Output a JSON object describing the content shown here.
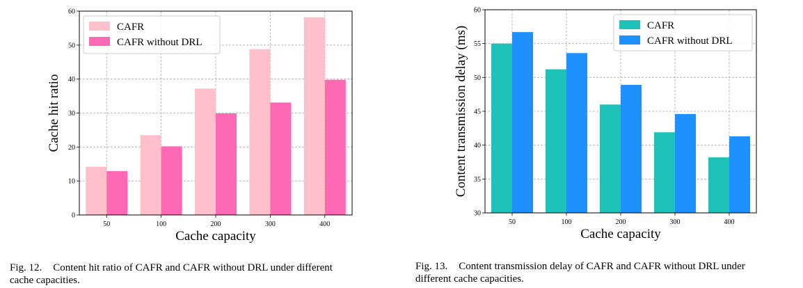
{
  "chart_data": [
    {
      "type": "bar",
      "title": "",
      "xlabel": "Cache capacity",
      "ylabel": "Cache hit ratio",
      "categories": [
        "50",
        "100",
        "200",
        "300",
        "400"
      ],
      "ylim": [
        0,
        60
      ],
      "yticks": [
        "0",
        "10",
        "20",
        "30",
        "40",
        "50",
        "60"
      ],
      "grid": true,
      "legend_position": "top-left",
      "series": [
        {
          "name": "CAFR",
          "values": [
            14.2,
            23.5,
            37.2,
            48.8,
            58.2
          ],
          "color": "#ffc0cb"
        },
        {
          "name": "CAFR without DRL",
          "values": [
            12.9,
            20.2,
            29.9,
            33.1,
            39.8
          ],
          "color": "#ff69b4"
        }
      ]
    },
    {
      "type": "bar",
      "title": "",
      "xlabel": "Cache capacity",
      "ylabel": "Content transmission delay (ms)",
      "categories": [
        "50",
        "100",
        "200",
        "300",
        "400"
      ],
      "ylim": [
        30,
        60
      ],
      "yticks": [
        "30",
        "35",
        "40",
        "45",
        "50",
        "55",
        "60"
      ],
      "grid": true,
      "legend_position": "top-right",
      "series": [
        {
          "name": "CAFR",
          "values": [
            55.0,
            51.2,
            46.0,
            41.9,
            38.2
          ],
          "color": "#1ec2b8"
        },
        {
          "name": "CAFR without DRL",
          "values": [
            56.7,
            53.6,
            48.9,
            44.6,
            41.3
          ],
          "color": "#1e90ff"
        }
      ]
    }
  ],
  "captions": [
    {
      "label": "Fig. 12.",
      "line1": "Content hit ratio of CAFR and CAFR without DRL under different",
      "line2": "cache capacities."
    },
    {
      "label": "Fig. 13.",
      "line1": "Content transmission delay of CAFR and CAFR without DRL under",
      "line2": "different cache capacities."
    }
  ]
}
